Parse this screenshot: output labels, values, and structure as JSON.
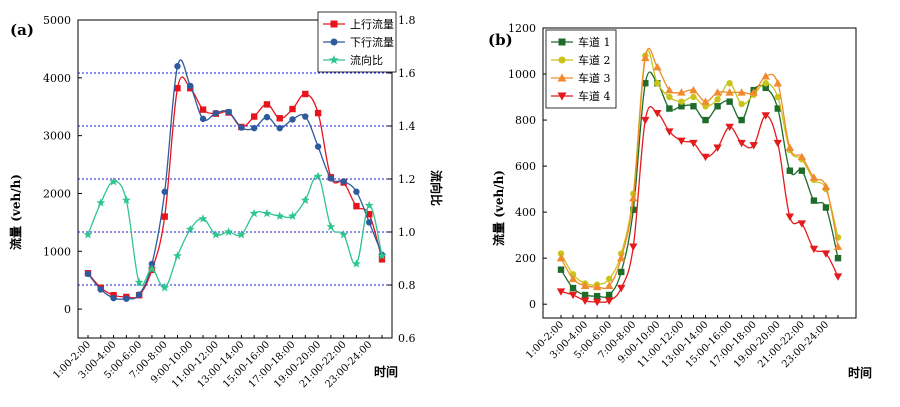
{
  "chart_data": [
    {
      "type": "line",
      "panel_label": "(a)",
      "xlabel": "时间",
      "ylabel": "流量 (veh/h)",
      "y2label": "流向比",
      "ylim": [
        -500,
        5000
      ],
      "yticks": [
        0,
        1000,
        2000,
        3000,
        4000,
        5000
      ],
      "y2lim": [
        0.6,
        1.8
      ],
      "y2ticks": [
        0.6,
        0.8,
        1.0,
        1.2,
        1.4,
        1.6,
        1.8
      ],
      "ref_lines_y2": [
        0.8,
        1.0,
        1.2,
        1.4,
        1.6
      ],
      "x": [
        1,
        2,
        3,
        4,
        5,
        6,
        7,
        8,
        9,
        10,
        11,
        12,
        13,
        14,
        15,
        16,
        17,
        18,
        19,
        20,
        21,
        22,
        23,
        24
      ],
      "xtick_labels": [
        "1:00-2:00",
        "3:00-4:00",
        "5:00-6:00",
        "7:00-8:00",
        "9:00-10:00",
        "11:00-12:00",
        "13:00-14:00",
        "15:00-16:00",
        "17:00-18:00",
        "19:00-20:00",
        "21:00-22:00",
        "23:00-24:00"
      ],
      "legend_position": "top-right",
      "series": [
        {
          "name": "上行流量",
          "color": "#e8131d",
          "marker": "square",
          "axis": "left",
          "values": [
            620,
            370,
            240,
            210,
            240,
            680,
            1600,
            3820,
            3820,
            3450,
            3380,
            3400,
            3150,
            3330,
            3540,
            3300,
            3460,
            3720,
            3390,
            2280,
            2190,
            1780,
            1640,
            860
          ]
        },
        {
          "name": "下行流量",
          "color": "#2e5b9e",
          "marker": "circle",
          "axis": "left",
          "values": [
            610,
            340,
            190,
            180,
            250,
            780,
            2030,
            4200,
            3860,
            3290,
            3390,
            3410,
            3140,
            3130,
            3320,
            3130,
            3280,
            3330,
            2810,
            2260,
            2210,
            2030,
            1500,
            940
          ]
        },
        {
          "name": "流向比",
          "color": "#2ec58e",
          "marker": "star",
          "axis": "right",
          "values": [
            0.99,
            1.11,
            1.19,
            1.12,
            0.81,
            0.86,
            0.79,
            0.91,
            1.01,
            1.05,
            0.99,
            1.0,
            0.99,
            1.07,
            1.07,
            1.06,
            1.06,
            1.12,
            1.21,
            1.02,
            0.99,
            0.88,
            1.1,
            0.91
          ]
        }
      ]
    },
    {
      "type": "line",
      "panel_label": "(b)",
      "xlabel": "时间",
      "ylabel": "流量 (veh/h)",
      "ylim": [
        -60,
        1200
      ],
      "yticks": [
        0,
        200,
        400,
        600,
        800,
        1000,
        1200
      ],
      "x": [
        1,
        2,
        3,
        4,
        5,
        6,
        7,
        8,
        9,
        10,
        11,
        12,
        13,
        14,
        15,
        16,
        17,
        18,
        19,
        20,
        21,
        22,
        23,
        24
      ],
      "xtick_labels": [
        "1:00-2:00",
        "3:00-4:00",
        "5:00-6:00",
        "7:00-8:00",
        "9:00-10:00",
        "11:00-12:00",
        "13:00-14:00",
        "15:00-16:00",
        "17:00-18:00",
        "19:00-20:00",
        "21:00-22:00",
        "23:00-24:00"
      ],
      "legend_position": "top-left",
      "series": [
        {
          "name": "车道 1",
          "color": "#1e6b2c",
          "marker": "square",
          "values": [
            150,
            70,
            40,
            35,
            40,
            140,
            410,
            960,
            960,
            850,
            860,
            860,
            800,
            860,
            880,
            800,
            930,
            940,
            850,
            580,
            580,
            450,
            420,
            200
          ]
        },
        {
          "name": "车道 2",
          "color": "#c9c41a",
          "marker": "circle",
          "values": [
            220,
            130,
            90,
            85,
            110,
            220,
            480,
            1080,
            960,
            900,
            880,
            900,
            860,
            890,
            960,
            870,
            910,
            960,
            900,
            670,
            630,
            540,
            500,
            290
          ]
        },
        {
          "name": "车道 3",
          "color": "#f08a2c",
          "marker": "triangle-up",
          "values": [
            200,
            110,
            80,
            75,
            80,
            200,
            460,
            1070,
            1030,
            930,
            920,
            930,
            880,
            920,
            920,
            920,
            920,
            990,
            960,
            680,
            640,
            550,
            510,
            250
          ]
        },
        {
          "name": "车道 4",
          "color": "#e41a1c",
          "marker": "triangle-down",
          "values": [
            55,
            40,
            15,
            10,
            15,
            70,
            250,
            800,
            830,
            750,
            710,
            700,
            640,
            680,
            770,
            700,
            690,
            820,
            700,
            380,
            350,
            240,
            220,
            120
          ]
        }
      ]
    }
  ]
}
